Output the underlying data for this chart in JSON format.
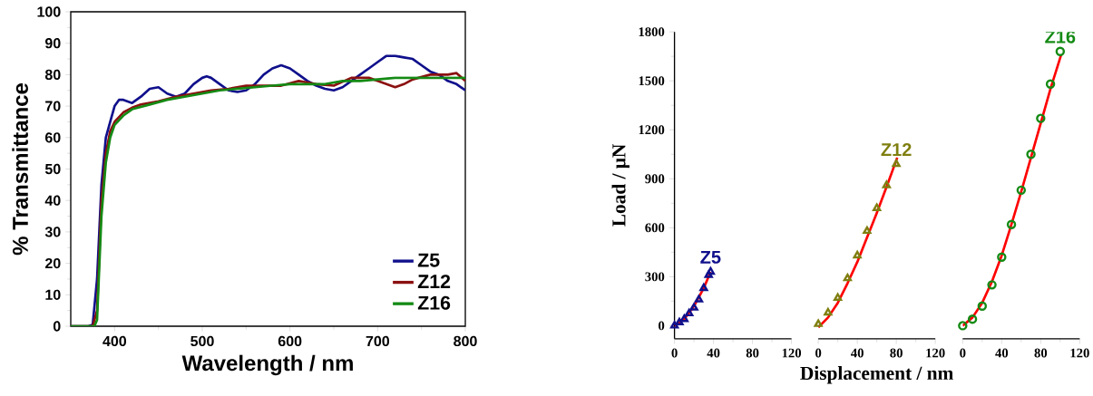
{
  "chart_data": [
    {
      "type": "line",
      "xlabel": "Wavelength / nm",
      "ylabel": "% Transmittance",
      "xlim": [
        350,
        800
      ],
      "ylim": [
        0,
        100
      ],
      "xticks": [
        400,
        500,
        600,
        700,
        800
      ],
      "yticks": [
        0,
        10,
        20,
        30,
        40,
        50,
        60,
        70,
        80,
        90,
        100
      ],
      "legend": "bottom right",
      "series": [
        {
          "name": "Z5",
          "color": "#10108c",
          "x": [
            350,
            370,
            375,
            380,
            385,
            390,
            395,
            400,
            405,
            410,
            420,
            430,
            440,
            450,
            460,
            470,
            480,
            490,
            500,
            505,
            510,
            520,
            530,
            540,
            550,
            560,
            570,
            580,
            590,
            600,
            610,
            620,
            630,
            640,
            650,
            660,
            670,
            680,
            690,
            700,
            710,
            720,
            730,
            740,
            750,
            760,
            770,
            780,
            790,
            800
          ],
          "values": [
            0,
            0,
            0.5,
            15,
            45,
            60,
            65,
            70,
            72,
            72,
            71,
            73,
            75.5,
            76,
            74,
            73,
            74,
            77,
            79,
            79.5,
            79,
            77,
            75,
            74.5,
            75,
            77,
            80,
            82,
            83,
            82,
            80,
            78,
            76.5,
            75.5,
            75,
            76,
            78,
            80,
            82,
            84,
            86,
            86,
            85.5,
            85,
            83,
            81,
            80,
            78,
            77,
            75
          ]
        },
        {
          "name": "Z12",
          "color": "#8b1010",
          "x": [
            350,
            375,
            380,
            385,
            390,
            395,
            400,
            410,
            420,
            430,
            450,
            470,
            490,
            510,
            530,
            550,
            570,
            590,
            610,
            630,
            650,
            670,
            690,
            700,
            710,
            720,
            730,
            740,
            760,
            780,
            790,
            800
          ],
          "values": [
            0,
            0,
            5,
            40,
            55,
            62,
            65,
            68,
            69.5,
            70.5,
            71.5,
            73,
            74,
            75,
            75.5,
            76.5,
            76.5,
            76.5,
            78,
            77,
            76.5,
            79,
            79,
            78,
            77,
            76,
            77,
            78.5,
            80,
            80,
            80.5,
            78
          ]
        },
        {
          "name": "Z16",
          "color": "#148a14",
          "x": [
            350,
            377,
            380,
            385,
            390,
            395,
            400,
            410,
            420,
            440,
            460,
            480,
            500,
            520,
            540,
            560,
            580,
            600,
            620,
            640,
            660,
            680,
            700,
            720,
            740,
            760,
            780,
            800
          ],
          "values": [
            0,
            0,
            2,
            35,
            52,
            60,
            64,
            67,
            69,
            70.5,
            72,
            73,
            74,
            75,
            75.5,
            76,
            76.5,
            77,
            77,
            77,
            78,
            78,
            78.5,
            79,
            79,
            79,
            79,
            79
          ]
        }
      ]
    },
    {
      "type": "scatter",
      "ylabel": "Load / μN",
      "xlim": [
        0,
        120
      ],
      "ylim": [
        -80,
        1800
      ],
      "xticks": [
        0,
        40,
        80,
        120
      ],
      "yticks": [
        0,
        300,
        600,
        900,
        1200,
        1500,
        1800
      ],
      "series": [
        {
          "name": "Z5",
          "color": "#10108c",
          "marker": "triangle",
          "x": [
            0,
            5,
            10,
            15,
            20,
            25,
            30,
            35,
            37
          ],
          "values": [
            0,
            20,
            40,
            75,
            110,
            160,
            230,
            310,
            330
          ]
        },
        {
          "type": "line",
          "color": "#ff0000",
          "x": [
            0,
            10,
            20,
            30,
            37
          ],
          "values": [
            0,
            40,
            120,
            230,
            330
          ]
        }
      ]
    },
    {
      "type": "scatter",
      "xlabel": "Displacement / nm",
      "xlim": [
        0,
        120
      ],
      "ylim": [
        -80,
        1800
      ],
      "xticks": [
        0,
        40,
        80,
        120
      ],
      "tick_labels": "x",
      "series": [
        {
          "name": "Z12",
          "color": "#7f7f10",
          "marker": "triangle",
          "x": [
            0,
            10,
            20,
            30,
            40,
            50,
            60,
            70,
            80
          ],
          "values": [
            10,
            80,
            170,
            290,
            430,
            580,
            720,
            860,
            990
          ]
        },
        {
          "type": "line",
          "color": "#ff0000",
          "x": [
            0,
            10,
            20,
            30,
            40,
            50,
            60,
            70,
            81
          ],
          "values": [
            -10,
            50,
            140,
            260,
            390,
            540,
            690,
            850,
            1030
          ]
        }
      ]
    },
    {
      "type": "scatter",
      "xlim": [
        0,
        120
      ],
      "ylim": [
        -80,
        1800
      ],
      "xticks": [
        0,
        40,
        80,
        120
      ],
      "tick_labels": "x",
      "series": [
        {
          "name": "Z16",
          "color": "#148a14",
          "marker": "circle",
          "x": [
            0,
            10,
            20,
            30,
            40,
            50,
            60,
            70,
            80,
            90,
            100
          ],
          "values": [
            0,
            40,
            120,
            250,
            420,
            620,
            830,
            1050,
            1270,
            1480,
            1680
          ]
        },
        {
          "type": "line",
          "color": "#ff0000",
          "x": [
            0,
            10,
            20,
            30,
            40,
            50,
            60,
            70,
            80,
            90,
            101
          ],
          "values": [
            0,
            50,
            140,
            270,
            430,
            620,
            820,
            1030,
            1240,
            1450,
            1660
          ]
        }
      ]
    }
  ]
}
